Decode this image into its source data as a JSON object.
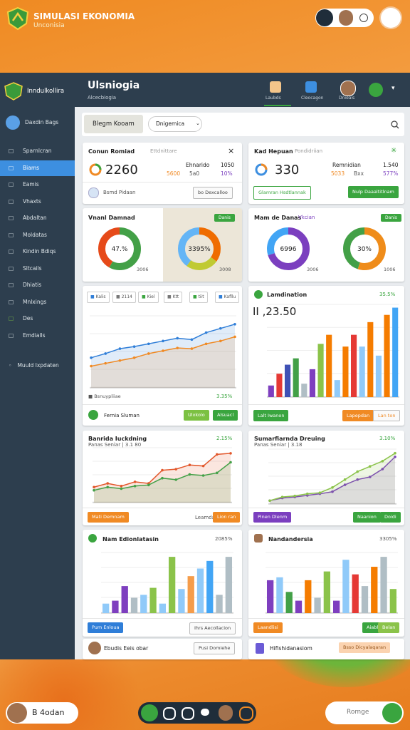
{
  "brand": {
    "title": "SIMULASI EKONOMIA",
    "subtitle": "Unconisia"
  },
  "header": {
    "title": "Ulsniogia",
    "subtitle": "Alcecbiogia",
    "tabs": [
      "Laubds",
      "Cleocagon",
      "Dnieais"
    ]
  },
  "toolbar": {
    "button": "Blegm Kooam",
    "dropdown": "Dnigemica"
  },
  "sidebar": {
    "title": "Inndulkollira",
    "search": "Daxdin Bags",
    "items": [
      "Sparnlcran",
      "Biams",
      "Eamis",
      "Vhaxts",
      "Abdaltan",
      "Moldatas",
      "Kindin Bdiqs",
      "Sltcails",
      "Dhiatis",
      "Mnlxings",
      "Des",
      "Emdialls"
    ],
    "footer": "Muuld Ixpdaten"
  },
  "cards": [
    {
      "title": "Conun Romiad",
      "tag": "Ettdnittare",
      "value": "2260",
      "right_label": "Ehnarido",
      "right_value": "1050",
      "stats": [
        "5600",
        "5a0",
        "10%"
      ],
      "footer": "Bsmd Pidaan",
      "button": "bo Dexcalloo"
    },
    {
      "title": "Kad Hepuan",
      "tag": "Pondidriian",
      "value": "330",
      "right_label": "Remnidian",
      "right_value": "1.540",
      "stats": [
        "5033",
        "Bxx",
        "577%"
      ],
      "buttons": [
        "Glamran Hsdtlannak",
        "Nulp Daaaltitlnam"
      ]
    },
    {
      "title": "Vnanl Damnad",
      "badge": "Danis",
      "donuts": [
        {
          "type": "donut",
          "label": "47.%",
          "sub": "3006",
          "values": [
            58,
            42
          ],
          "colors": [
            "#43a047",
            "#e64a19"
          ]
        },
        {
          "type": "donut",
          "label": "3395%",
          "sub": "3008",
          "values": [
            35,
            25,
            40
          ],
          "colors": [
            "#ef6c00",
            "#c0ca33",
            "#64b5f6"
          ]
        }
      ]
    },
    {
      "title": "Mam de Danas",
      "tag": "Vkcian",
      "badge": "Danis",
      "donuts": [
        {
          "type": "donut",
          "label": "6996",
          "sub": "3006",
          "values": [
            70,
            30
          ],
          "colors": [
            "#7b3fbf",
            "#42a5f5"
          ]
        },
        {
          "type": "donut",
          "label": "30%",
          "sub": "1006",
          "values": [
            55,
            45
          ],
          "colors": [
            "#ef8c1a",
            "#43a047"
          ]
        }
      ]
    },
    {
      "chips": [
        "Kalis",
        "2114",
        "Kiel",
        "Ktt",
        "tiit",
        "Kafllu"
      ],
      "chart": {
        "type": "line",
        "ylim": [
          0,
          100
        ],
        "series": [
          {
            "color": "#2f7ed8",
            "values": [
              42,
              48,
              55,
              58,
              62,
              66,
              70,
              68,
              78,
              84,
              90
            ]
          },
          {
            "color": "#f08a24",
            "values": [
              30,
              34,
              38,
              42,
              48,
              52,
              56,
              55,
              62,
              66,
              72
            ]
          }
        ]
      },
      "caption": "Bsnuypliiae",
      "caption_value": "3.35%",
      "footer": "Fernia Sluman",
      "buttons": [
        "Ulxkolo",
        "Alsuacl"
      ]
    },
    {
      "title": "Lamdination",
      "title_value": "35.5%",
      "value": "II ,23.50",
      "chart": {
        "type": "bar",
        "ylim": [
          0,
          100
        ],
        "values": [
          12,
          25,
          35,
          42,
          14,
          30,
          58,
          68,
          18,
          55,
          68,
          55,
          82,
          45,
          90,
          98
        ],
        "colors": [
          "#7e3fbf",
          "#e53935",
          "#3f51b5",
          "#43a047",
          "#b0bec5",
          "#7e3fbf",
          "#8bc34a",
          "#f57c00",
          "#90caf9",
          "#f57c00",
          "#e53935",
          "#90caf9",
          "#f57c00",
          "#90caf9",
          "#f57c00",
          "#42a5f5"
        ]
      },
      "footer": "Lalt Iwanon",
      "buttons": [
        "Lapepdan",
        "Lan ton"
      ]
    },
    {
      "title": "Banrida Iuckdning",
      "subtitle": "Panas Seniar | 3.1 80",
      "title_value": "2.15%",
      "chart": {
        "type": "line",
        "ylim": [
          0,
          100
        ],
        "series": [
          {
            "color": "#e2572b",
            "values": [
              28,
              35,
              30,
              38,
              35,
              60,
              62,
              70,
              68,
              90,
              92
            ]
          },
          {
            "color": "#43a047",
            "values": [
              22,
              28,
              25,
              30,
              32,
              45,
              42,
              52,
              50,
              55,
              75
            ]
          }
        ]
      },
      "buttons": [
        "Mati Demnam",
        "Leamdan",
        "Lion ran"
      ]
    },
    {
      "title": "Sumarfiarnda Dreuing",
      "subtitle": "Panas Seniar | 3.18",
      "title_value": "3.10%",
      "chart": {
        "type": "line",
        "ylim": [
          0,
          100
        ],
        "series": [
          {
            "color": "#7b3fbf",
            "values": [
              5,
              10,
              12,
              15,
              18,
              22,
              35,
              45,
              50,
              65,
              88
            ]
          },
          {
            "color": "#8bc34a",
            "values": [
              5,
              12,
              14,
              18,
              20,
              30,
              45,
              60,
              70,
              80,
              95
            ]
          }
        ]
      },
      "buttons": [
        "Pinen Dlenm",
        "Naanion",
        "Doidi"
      ]
    },
    {
      "title": "Nam Edionlatasin",
      "title_value": "2085%",
      "chart": {
        "type": "bar",
        "ylim": [
          0,
          100
        ],
        "values": [
          15,
          20,
          45,
          25,
          30,
          42,
          15,
          95,
          40,
          62,
          75,
          88,
          30,
          95
        ],
        "colors": [
          "#90caf9",
          "#7e3fbf",
          "#7e3fbf",
          "#b0bec5",
          "#90caf9",
          "#8bc34a",
          "#90caf9",
          "#8bc34a",
          "#90caf9",
          "#f59c4a",
          "#90caf9",
          "#42a5f5",
          "#b0bec5",
          "#b0bec5"
        ]
      },
      "buttons": [
        "Pum Enloua",
        "Ihrs Aecollacion"
      ]
    },
    {
      "title": "Nandandersia",
      "title_value": "3305%",
      "chart": {
        "type": "bar",
        "ylim": [
          0,
          100
        ],
        "values": [
          55,
          60,
          35,
          20,
          55,
          25,
          70,
          20,
          90,
          65,
          45,
          78,
          95,
          40
        ],
        "colors": [
          "#7e3fbf",
          "#90caf9",
          "#43a047",
          "#7e3fbf",
          "#f57c00",
          "#b0bec5",
          "#8bc34a",
          "#7e3fbf",
          "#90caf9",
          "#e53935",
          "#b0bec5",
          "#f57c00",
          "#b0bec5",
          "#8bc34a"
        ]
      },
      "buttons": [
        "Laandlisi",
        "Aiabh",
        "Belan"
      ]
    },
    {
      "title": "Ebudis Eeis obar",
      "button": "Pusi Domiehe"
    },
    {
      "title": "Hifishidanasiom",
      "button": "Bsso Dicyalaqaran"
    }
  ],
  "bottom": {
    "user": "B 4odan",
    "search": "Romge"
  }
}
